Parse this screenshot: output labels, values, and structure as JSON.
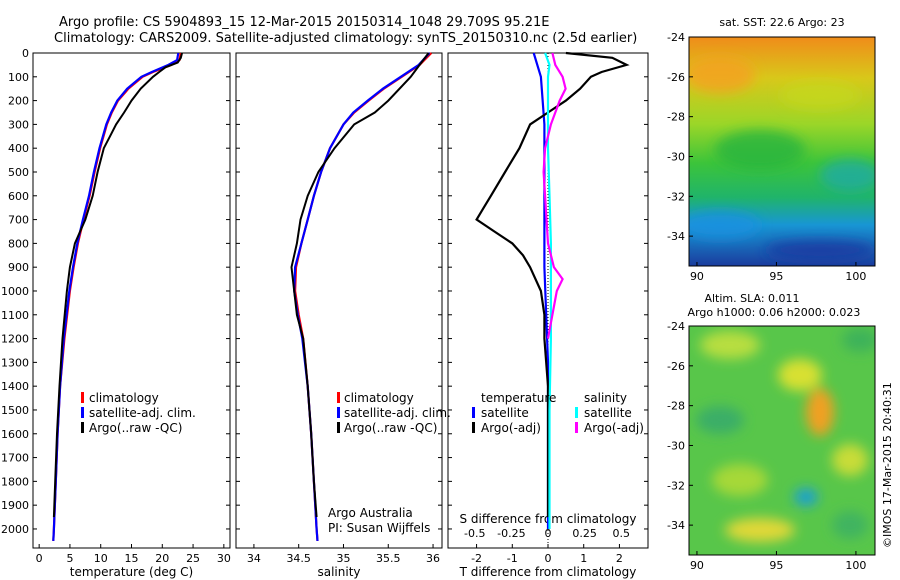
{
  "header": {
    "line1": "Argo profile: CS 5904893_15 12-Mar-2015 20150314_1048 29.709S 95.21E",
    "line2": "Climatology: CARS2009. Satellite-adjusted climatology: synTS_20150310.nc (2.5d earlier)"
  },
  "colors": {
    "climatology": "#ff0000",
    "satellite_adj": "#0000ff",
    "argo": "#000000",
    "salinity_satellite": "#00ffff",
    "salinity_argo": "#ff00ff"
  },
  "chart_data": [
    {
      "type": "line",
      "xlabel": "temperature (deg C)",
      "ylabel": "",
      "xlim": [
        -1,
        31
      ],
      "ylim": [
        2080,
        0
      ],
      "xticks": [
        0,
        5,
        10,
        15,
        20,
        25,
        30
      ],
      "yticks": [
        0,
        100,
        200,
        300,
        400,
        500,
        600,
        700,
        800,
        900,
        1000,
        1100,
        1200,
        1300,
        1400,
        1500,
        1600,
        1700,
        1800,
        1900,
        2000
      ],
      "legend": [
        "climatology",
        "satellite-adj. clim.",
        "Argo(..raw -QC)"
      ],
      "series": [
        {
          "name": "climatology",
          "depth": [
            0,
            30,
            50,
            80,
            100,
            150,
            200,
            250,
            300,
            400,
            500,
            600,
            700,
            800,
            900,
            1000,
            1200,
            1400,
            1600,
            1800,
            2000,
            2050
          ],
          "values": [
            23.0,
            22.8,
            21.5,
            18.5,
            16.8,
            14.5,
            12.8,
            11.8,
            11.0,
            9.9,
            9.0,
            8.2,
            7.2,
            6.3,
            5.6,
            5.0,
            4.1,
            3.4,
            3.0,
            2.7,
            2.4,
            2.3
          ]
        },
        {
          "name": "satellite-adj. clim.",
          "depth": [
            0,
            30,
            50,
            80,
            100,
            150,
            200,
            250,
            300,
            400,
            500,
            600,
            700,
            800,
            900,
            1000,
            1200,
            1400,
            1600,
            1800,
            2000,
            2050
          ],
          "values": [
            22.6,
            22.4,
            21.0,
            18.3,
            16.6,
            14.3,
            12.7,
            11.7,
            10.9,
            9.8,
            8.9,
            8.1,
            7.1,
            6.2,
            5.5,
            4.9,
            4.0,
            3.4,
            3.0,
            2.7,
            2.4,
            2.3
          ]
        },
        {
          "name": "Argo(..raw -QC)",
          "depth": [
            0,
            20,
            40,
            60,
            80,
            100,
            150,
            200,
            250,
            300,
            350,
            400,
            500,
            600,
            700,
            800,
            900,
            1000,
            1200,
            1400,
            1600,
            1800,
            1950
          ],
          "values": [
            23.2,
            23.0,
            22.5,
            20.5,
            19.5,
            18.5,
            16.5,
            15.0,
            13.8,
            12.5,
            11.5,
            10.5,
            9.5,
            8.7,
            7.5,
            5.8,
            5.0,
            4.5,
            3.8,
            3.3,
            2.9,
            2.6,
            2.4
          ]
        }
      ]
    },
    {
      "type": "line",
      "xlabel": "salinity",
      "ylabel": "",
      "xlim": [
        33.8,
        36.1
      ],
      "ylim": [
        2080,
        0
      ],
      "xticks": [
        34,
        34.5,
        35,
        35.5,
        36
      ],
      "legend": [
        "climatology",
        "satellite-adj. clim.",
        "Argo(..raw -QC)"
      ],
      "annotation": [
        "Argo Australia",
        "PI: Susan Wijffels"
      ],
      "series": [
        {
          "name": "climatology",
          "depth": [
            0,
            50,
            100,
            150,
            200,
            250,
            300,
            400,
            500,
            600,
            700,
            800,
            900,
            1000,
            1100,
            1200,
            1400,
            1600,
            1800,
            2000,
            2050
          ],
          "values": [
            35.98,
            35.85,
            35.65,
            35.45,
            35.28,
            35.12,
            35.0,
            34.85,
            34.75,
            34.67,
            34.6,
            34.53,
            34.47,
            34.46,
            34.5,
            34.55,
            34.6,
            34.64,
            34.67,
            34.7,
            34.71
          ]
        },
        {
          "name": "satellite-adj. clim.",
          "depth": [
            0,
            50,
            100,
            150,
            200,
            250,
            300,
            400,
            500,
            600,
            700,
            800,
            900,
            1000,
            1100,
            1200,
            1400,
            1600,
            1800,
            2000,
            2050
          ],
          "values": [
            35.96,
            35.84,
            35.64,
            35.44,
            35.27,
            35.11,
            35.0,
            34.85,
            34.75,
            34.67,
            34.6,
            34.53,
            34.46,
            34.45,
            34.49,
            34.54,
            34.6,
            34.64,
            34.67,
            34.7,
            34.71
          ]
        },
        {
          "name": "Argo(..raw -QC)",
          "depth": [
            0,
            50,
            100,
            200,
            250,
            300,
            400,
            500,
            600,
            700,
            800,
            900,
            1000,
            1100,
            1200,
            1400,
            1600,
            1800,
            1950
          ],
          "values": [
            35.95,
            35.85,
            35.75,
            35.5,
            35.35,
            35.12,
            34.9,
            34.72,
            34.6,
            34.52,
            34.48,
            34.42,
            34.45,
            34.48,
            34.55,
            34.6,
            34.64,
            34.67,
            34.7
          ]
        }
      ]
    },
    {
      "type": "line",
      "xlabel": "T difference from climatology",
      "x2label": "S difference from climatology",
      "xlim": [
        -2.8,
        2.8
      ],
      "ylim": [
        2080,
        0
      ],
      "xticks": [
        -2,
        -1,
        0,
        1,
        2
      ],
      "x2ticks": [
        -0.5,
        -0.25,
        0,
        0.25,
        0.5
      ],
      "legend_groups": [
        {
          "title": "temperature",
          "items": [
            "satellite",
            "Argo(-adj)"
          ]
        },
        {
          "title": "salinity",
          "items": [
            "satellite",
            "Argo(-adj)"
          ]
        }
      ],
      "series": [
        {
          "name": "temperature satellite",
          "depth": [
            0,
            100,
            300,
            500,
            700,
            900,
            1100,
            1300,
            1600,
            2000
          ],
          "values": [
            -0.4,
            -0.2,
            -0.1,
            -0.1,
            -0.1,
            -0.1,
            -0.05,
            0,
            0,
            0
          ]
        },
        {
          "name": "temperature Argo(-adj)",
          "depth": [
            0,
            20,
            50,
            80,
            100,
            150,
            200,
            250,
            300,
            400,
            500,
            600,
            650,
            700,
            750,
            800,
            850,
            900,
            1000,
            1100,
            1200,
            1400,
            1600,
            1800,
            1950
          ],
          "values": [
            0.5,
            1.8,
            2.2,
            1.5,
            1.2,
            0.9,
            0.5,
            0.0,
            -0.5,
            -0.8,
            -1.2,
            -1.6,
            -1.8,
            -2.0,
            -1.5,
            -1.0,
            -0.7,
            -0.5,
            -0.2,
            -0.1,
            -0.1,
            0.0,
            0.0,
            0.0,
            0.0
          ]
        },
        {
          "name": "salinity satellite",
          "depth": [
            0,
            50,
            100,
            200,
            400,
            600,
            800,
            1000,
            1200,
            1500,
            2000
          ],
          "values": [
            -0.02,
            0.01,
            0.0,
            0.0,
            0.0,
            0.01,
            0.02,
            0.02,
            0.02,
            0.01,
            0.01
          ]
        },
        {
          "name": "salinity Argo(-adj)",
          "depth": [
            0,
            50,
            100,
            150,
            200,
            250,
            300,
            400,
            500,
            600,
            700,
            800,
            900,
            950,
            1000,
            1100,
            1200
          ],
          "values": [
            0.03,
            0.05,
            0.1,
            0.12,
            0.08,
            0.05,
            0.02,
            -0.02,
            -0.03,
            -0.02,
            -0.01,
            0.0,
            0.04,
            0.1,
            0.06,
            0.03,
            0.0
          ]
        }
      ]
    },
    {
      "type": "heatmap",
      "title": "sat. SST: 22.6  Argo: 23",
      "xlim": [
        89.5,
        101.2
      ],
      "ylim": [
        -35.5,
        -24
      ],
      "xticks": [
        90,
        95,
        100
      ],
      "yticks": [
        -24,
        -26,
        -28,
        -30,
        -32,
        -34
      ]
    },
    {
      "type": "heatmap",
      "title": "Altim. SLA: 0.011",
      "subtitle": "Argo h1000: 0.06 h2000: 0.023",
      "xlim": [
        89.5,
        101.2
      ],
      "ylim": [
        -35.5,
        -24
      ],
      "xticks": [
        90,
        95,
        100
      ],
      "yticks": [
        -24,
        -26,
        -28,
        -30,
        -32,
        -34
      ]
    }
  ],
  "credit": "©IMOS 17-Mar-2015 20:40:31"
}
